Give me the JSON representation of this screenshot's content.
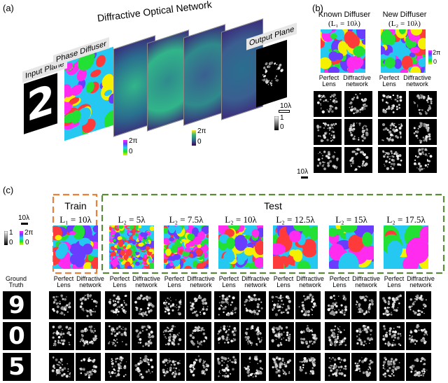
{
  "panel_a": {
    "label": "(a)",
    "title": "Diffractive Optical Network",
    "input_plane": "Input Plane",
    "phase_diffuser": "Phase Diffuser",
    "output_plane": "Output Plane",
    "scale": "10λ",
    "cb_phase_top": "2π",
    "cb_phase_bot": "0",
    "cb_layer_top": "2π",
    "cb_layer_bot": "0",
    "cb_out_top": "1",
    "cb_out_bot": "0"
  },
  "panel_b": {
    "label": "(b)",
    "known": "Known Diffuser",
    "known_eq": "(L₁ = 10λ)",
    "new": "New Diffuser",
    "new_eq": "(L₂ = 10λ)",
    "cb_top": "2π",
    "cb_bot": "0",
    "col1": "Perfect Lens",
    "col2": "Diffractive network",
    "col3": "Perfect Lens",
    "col4": "Diffractive network",
    "scale": "10λ"
  },
  "panel_c": {
    "label": "(c)",
    "train": "Train",
    "test": "Test",
    "scale": "10λ",
    "cb_amp_top": "1",
    "cb_amp_bot": "0",
    "cb_ph_top": "2π",
    "cb_ph_bot": "0",
    "ground_truth": "Ground Truth",
    "perfect_lens": "Perfect Lens",
    "diffractive_network": "Diffractive network",
    "diffusers": [
      "L₁ = 10λ",
      "L₂ = 5λ",
      "L₂ = 7.5λ",
      "L₂ = 10λ",
      "L₂ = 12.5λ",
      "L₂ = 15λ",
      "L₂ = 17.5λ"
    ],
    "digits": [
      "9",
      "0",
      "5"
    ]
  },
  "colors": {
    "train_box": "#e8803a",
    "test_box": "#5a8a3a"
  }
}
